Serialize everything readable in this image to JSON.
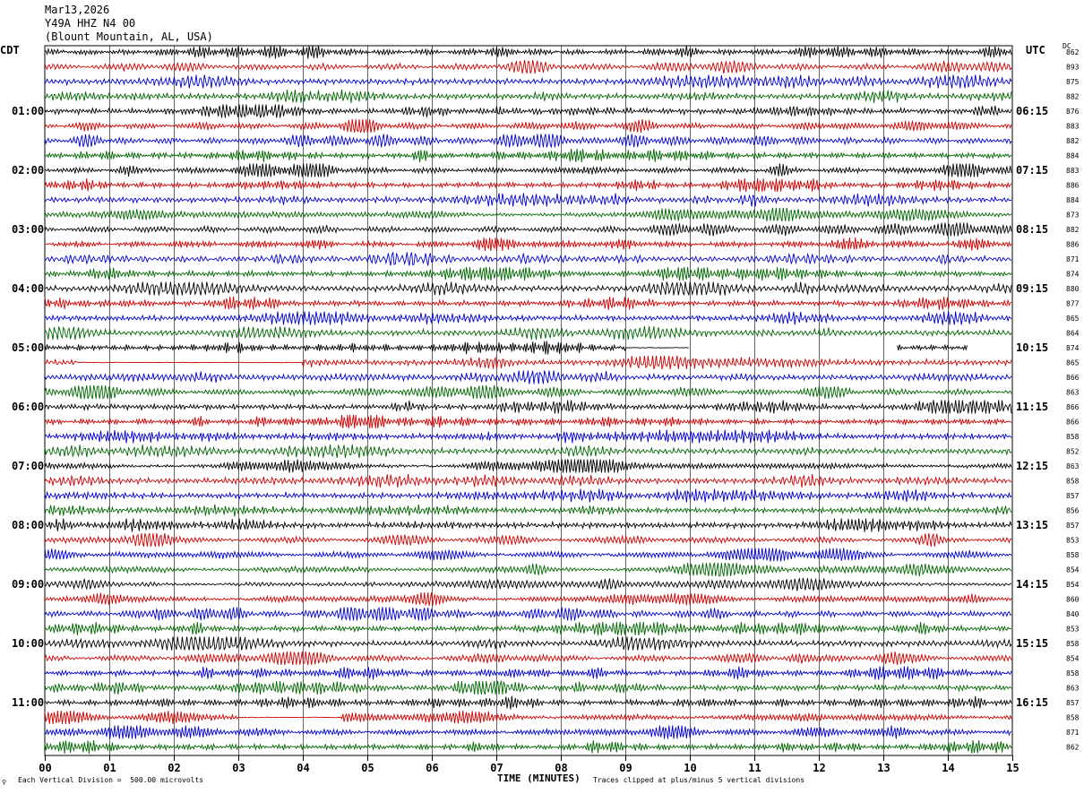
{
  "header": {
    "date": "Mar13,2026",
    "station": "Y49A HHZ N4 00",
    "location": "(Blount Mountain, AL, USA)"
  },
  "labels": {
    "left_timezone": "CDT",
    "right_timezone": "UTC",
    "dc_header": "DC"
  },
  "footer": {
    "scale_note": "Each Vertical Division =  500.00 microvolts",
    "clip_note": "Traces clipped at plus/minus 5 vertical divisions",
    "logo_mark": "⚲"
  },
  "colors": {
    "trace_cycle": [
      "#000000",
      "#cc0000",
      "#0000cc",
      "#006600"
    ],
    "grid": "#000000"
  },
  "chart_data": {
    "type": "helicorder",
    "xlabel": "TIME (MINUTES)",
    "x_ticks": [
      "00",
      "01",
      "02",
      "03",
      "04",
      "05",
      "06",
      "07",
      "08",
      "09",
      "10",
      "11",
      "12",
      "13",
      "14",
      "15"
    ],
    "xlim": [
      0,
      15
    ],
    "trace_count": 48,
    "minutes_per_trace": 15,
    "left_hour_labels": [
      "01:00",
      "02:00",
      "03:00",
      "04:00",
      "05:00",
      "06:00",
      "07:00",
      "08:00",
      "09:00",
      "10:00",
      "11:00"
    ],
    "right_hour_labels": [
      "06:15",
      "07:15",
      "08:15",
      "09:15",
      "10:15",
      "11:15",
      "12:15",
      "13:15",
      "14:15",
      "15:15",
      "16:15"
    ],
    "dc_offsets": [
      862,
      893,
      875,
      882,
      876,
      883,
      882,
      884,
      883,
      886,
      884,
      873,
      882,
      886,
      871,
      874,
      880,
      877,
      865,
      864,
      874,
      865,
      866,
      863,
      866,
      866,
      858,
      852,
      863,
      858,
      857,
      856,
      857,
      853,
      858,
      854,
      854,
      860,
      840,
      853,
      858,
      854,
      858,
      863,
      857,
      858,
      871,
      862
    ],
    "gaps": [
      {
        "trace": 20,
        "from_min": 10.0,
        "to_min": 13.2,
        "note": "no data"
      },
      {
        "trace": 20,
        "from_min": 14.3,
        "to_min": 15.0,
        "note": "no data"
      }
    ],
    "flat_segments": [
      {
        "trace": 20,
        "from_min": 9.0,
        "to_min": 10.0
      },
      {
        "trace": 21,
        "from_min": 0.5,
        "to_min": 4.0
      },
      {
        "trace": 45,
        "from_min": 3.0,
        "to_min": 4.6
      }
    ],
    "scale_microvolts_per_division": 500.0,
    "clip_divisions": 5
  }
}
